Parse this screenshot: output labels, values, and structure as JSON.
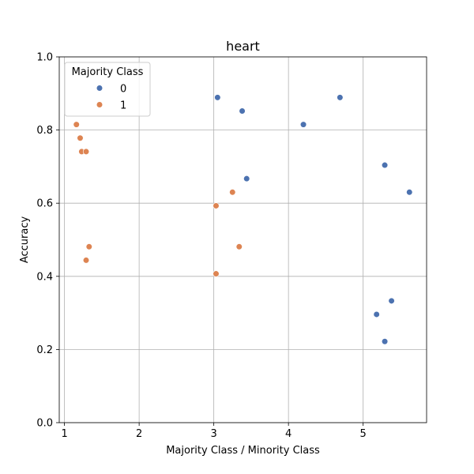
{
  "chart_data": {
    "type": "scatter",
    "title": "heart",
    "xlabel": "Majority Class / Minority Class",
    "ylabel": "Accuracy",
    "xlim": [
      0.93,
      5.85
    ],
    "ylim": [
      0.0,
      1.0
    ],
    "xticks": [
      1,
      2,
      3,
      4,
      5
    ],
    "yticks": [
      0.0,
      0.2,
      0.4,
      0.6,
      0.8,
      1.0
    ],
    "xtick_labels": [
      "1",
      "2",
      "3",
      "4",
      "5"
    ],
    "ytick_labels": [
      "0.0",
      "0.2",
      "0.4",
      "0.6",
      "0.8",
      "1.0"
    ],
    "grid": true,
    "legend": {
      "title": "Majority Class",
      "placement": "top-left"
    },
    "series": [
      {
        "name": "0",
        "color": "#4c72b0",
        "points": [
          {
            "x": 3.05,
            "y": 0.889
          },
          {
            "x": 3.38,
            "y": 0.852
          },
          {
            "x": 4.2,
            "y": 0.815
          },
          {
            "x": 4.69,
            "y": 0.889
          },
          {
            "x": 5.29,
            "y": 0.704
          },
          {
            "x": 5.62,
            "y": 0.63
          },
          {
            "x": 3.44,
            "y": 0.667
          },
          {
            "x": 5.38,
            "y": 0.333
          },
          {
            "x": 5.18,
            "y": 0.296
          },
          {
            "x": 5.29,
            "y": 0.222
          }
        ]
      },
      {
        "name": "1",
        "color": "#dd8452",
        "points": [
          {
            "x": 1.16,
            "y": 0.815
          },
          {
            "x": 1.21,
            "y": 0.778
          },
          {
            "x": 1.23,
            "y": 0.741
          },
          {
            "x": 1.29,
            "y": 0.741
          },
          {
            "x": 1.33,
            "y": 0.481
          },
          {
            "x": 1.29,
            "y": 0.444
          },
          {
            "x": 3.03,
            "y": 0.593
          },
          {
            "x": 3.25,
            "y": 0.63
          },
          {
            "x": 3.34,
            "y": 0.481
          },
          {
            "x": 3.03,
            "y": 0.407
          }
        ]
      }
    ]
  }
}
